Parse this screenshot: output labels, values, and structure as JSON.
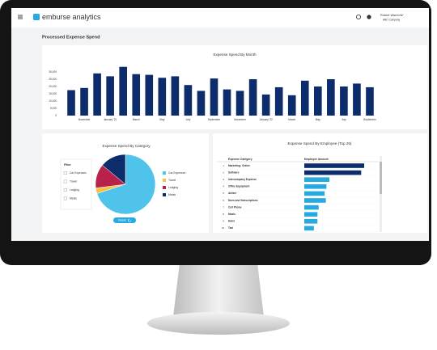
{
  "header": {
    "logo": "emburse analytics",
    "user_name": "Robert Warren",
    "company": "ABC Company"
  },
  "page_title": "Processed Expense Spend",
  "chart_data": [
    {
      "type": "bar",
      "title": "Expense Spend By Month",
      "categories": [
        null,
        "November",
        null,
        "January '21",
        null,
        "March",
        null,
        "May",
        null,
        "July",
        null,
        "September",
        null,
        "November",
        null,
        "January '22",
        null,
        "March",
        null,
        "May",
        null,
        "July",
        null,
        "September"
      ],
      "values": [
        17500,
        19000,
        29000,
        27000,
        33500,
        28500,
        28000,
        26000,
        27000,
        21000,
        17000,
        25500,
        18000,
        17000,
        25000,
        14500,
        19500,
        14000,
        24000,
        20000,
        25000,
        20000,
        22000,
        19500
      ],
      "color": "#0d2c6c",
      "ylim": [
        0,
        35000
      ],
      "yticks": [
        0,
        {
          "value": 5000,
          "label": "5,000"
        },
        {
          "value": 10000,
          "label": "10,000"
        },
        {
          "value": 15000,
          "label": "15,000"
        },
        {
          "value": 20000,
          "label": "20,000"
        },
        {
          "value": 25000,
          "label": "25,000"
        },
        {
          "value": 30000,
          "label": "30,000"
        }
      ],
      "grid": false
    },
    {
      "type": "pie",
      "title": "Expense Spend By Category",
      "categories": [
        "Car Expenses",
        "Travel",
        "Lodging",
        "Meals"
      ],
      "values": [
        70,
        3,
        13,
        14
      ],
      "colors": [
        "#4fc3ea",
        "#f6c244",
        "#b8224a",
        "#0d2c6c"
      ],
      "filter_title": "Filter",
      "filter_options": [
        "Car Expenses",
        "Travel",
        "Lodging",
        "Meals"
      ],
      "reset_label": "Reset"
    },
    {
      "type": "table-bar",
      "title": "Expense Spend By Employee (Top 25)",
      "columns": [
        "Expense Category",
        "Employee Amount"
      ],
      "ranks": [
        1,
        2,
        3,
        4,
        5,
        6,
        7,
        8,
        9,
        10
      ],
      "categories": [
        "Marketing: Online",
        "Software",
        "Intercompany Expense",
        "Office Equipment",
        "Airfare",
        "Dues and Subscriptions",
        "Cell Phone",
        "Meals",
        "Hotel",
        "Taxi"
      ],
      "values": [
        100,
        95,
        42,
        37,
        34,
        36,
        24,
        22,
        22,
        16
      ],
      "colors": [
        "#0d2c6c",
        "#0d2c6c",
        "#27a9e1",
        "#27a9e1",
        "#27a9e1",
        "#27a9e1",
        "#27a9e1",
        "#27a9e1",
        "#27a9e1",
        "#27a9e1"
      ]
    }
  ]
}
